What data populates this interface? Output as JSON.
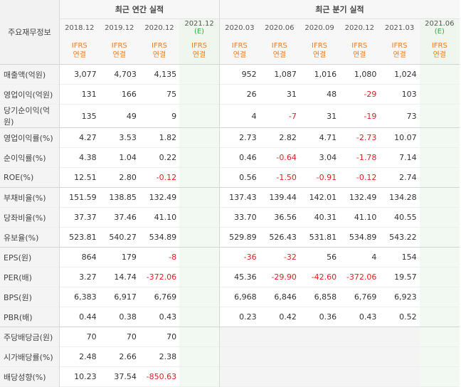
{
  "header": {
    "row_label": "주요재무정보",
    "annual_group": "최근 연간 실적",
    "quarter_group": "최근 분기 실적",
    "estimate_mark": "(E)",
    "accounting_top": "IFRS",
    "accounting_bottom": "연결"
  },
  "periods": [
    "2018.12",
    "2019.12",
    "2020.12",
    "2021.12",
    "2020.03",
    "2020.06",
    "2020.09",
    "2020.12",
    "2021.03",
    "2021.06"
  ],
  "rows": [
    {
      "label": "매출액(억원)",
      "values": [
        "3,077",
        "4,703",
        "4,135",
        "",
        "952",
        "1,087",
        "1,016",
        "1,080",
        "1,024",
        ""
      ]
    },
    {
      "label": "영업이익(억원)",
      "values": [
        "131",
        "166",
        "75",
        "",
        "26",
        "31",
        "48",
        "-29",
        "103",
        ""
      ]
    },
    {
      "label": "당기순이익(억원)",
      "values": [
        "135",
        "49",
        "9",
        "",
        "4",
        "-7",
        "31",
        "-19",
        "73",
        ""
      ]
    },
    {
      "label": "영업이익률(%)",
      "values": [
        "4.27",
        "3.53",
        "1.82",
        "",
        "2.73",
        "2.82",
        "4.71",
        "-2.73",
        "10.07",
        ""
      ]
    },
    {
      "label": "순이익률(%)",
      "values": [
        "4.38",
        "1.04",
        "0.22",
        "",
        "0.46",
        "-0.64",
        "3.04",
        "-1.78",
        "7.14",
        ""
      ]
    },
    {
      "label": "ROE(%)",
      "values": [
        "12.51",
        "2.80",
        "-0.12",
        "",
        "0.56",
        "-1.50",
        "-0.91",
        "-0.12",
        "2.74",
        ""
      ]
    },
    {
      "label": "부채비율(%)",
      "values": [
        "151.59",
        "138.85",
        "132.49",
        "",
        "137.43",
        "139.44",
        "142.01",
        "132.49",
        "134.28",
        ""
      ]
    },
    {
      "label": "당좌비율(%)",
      "values": [
        "37.37",
        "37.46",
        "41.10",
        "",
        "33.70",
        "36.56",
        "40.31",
        "41.10",
        "40.55",
        ""
      ]
    },
    {
      "label": "유보율(%)",
      "values": [
        "523.81",
        "540.27",
        "534.89",
        "",
        "529.89",
        "526.43",
        "531.81",
        "534.89",
        "543.22",
        ""
      ]
    },
    {
      "label": "EPS(원)",
      "values": [
        "864",
        "179",
        "-8",
        "",
        "-36",
        "-32",
        "56",
        "4",
        "154",
        ""
      ]
    },
    {
      "label": "PER(배)",
      "values": [
        "3.27",
        "14.74",
        "-372.06",
        "",
        "45.36",
        "-29.90",
        "-42.60",
        "-372.06",
        "19.57",
        ""
      ]
    },
    {
      "label": "BPS(원)",
      "values": [
        "6,383",
        "6,917",
        "6,769",
        "",
        "6,968",
        "6,846",
        "6,858",
        "6,769",
        "6,923",
        ""
      ]
    },
    {
      "label": "PBR(배)",
      "values": [
        "0.44",
        "0.38",
        "0.43",
        "",
        "0.23",
        "0.42",
        "0.36",
        "0.43",
        "0.52",
        ""
      ]
    },
    {
      "label": "주당배당금(원)",
      "values": [
        "70",
        "70",
        "70",
        "",
        "",
        "",
        "",
        "",
        "",
        ""
      ]
    },
    {
      "label": "시가배당률(%)",
      "values": [
        "2.48",
        "2.66",
        "2.38",
        "",
        "",
        "",
        "",
        "",
        "",
        ""
      ]
    },
    {
      "label": "배당성향(%)",
      "values": [
        "10.23",
        "37.54",
        "-850.63",
        "",
        "",
        "",
        "",
        "",
        "",
        ""
      ]
    }
  ],
  "colors": {
    "negative": "#e02020",
    "accounting": "#f37c20",
    "estimate": "#3aa64a"
  }
}
